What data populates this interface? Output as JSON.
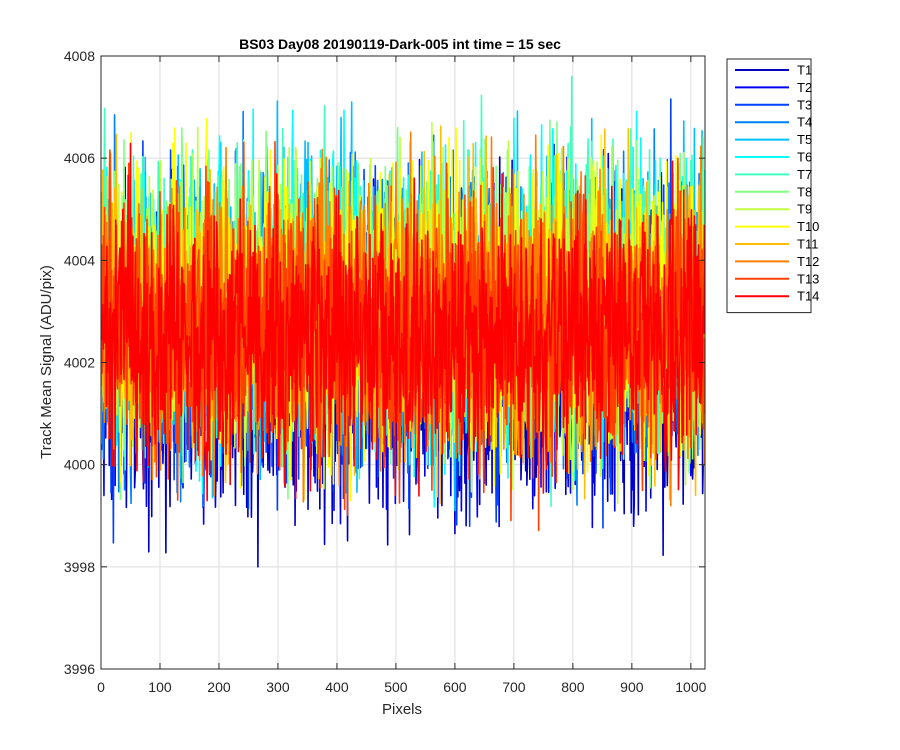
{
  "chart_data": {
    "type": "line",
    "title": "BS03 Day08 20190119-Dark-005 int time = 15 sec",
    "xlabel": "Pixels",
    "ylabel": "Track Mean Signal (ADU/pix)",
    "xlim": [
      0,
      1024
    ],
    "ylim": [
      3996,
      4008
    ],
    "xticks": [
      "0",
      "100",
      "200",
      "300",
      "400",
      "500",
      "600",
      "700",
      "800",
      "900",
      "1000"
    ],
    "yticks": [
      "3996",
      "3998",
      "4000",
      "4002",
      "4004",
      "4006",
      "4008"
    ],
    "grid": true,
    "legend_position": "outside-right",
    "points_per_series": 1024,
    "series": [
      {
        "name": "T1",
        "color": "#0000BF",
        "mean": 4002.0,
        "spread": 1.45
      },
      {
        "name": "T2",
        "color": "#0000F5",
        "mean": 4002.3,
        "spread": 1.4
      },
      {
        "name": "T3",
        "color": "#0040FF",
        "mean": 4002.6,
        "spread": 1.4
      },
      {
        "name": "T4",
        "color": "#0080FF",
        "mean": 4002.9,
        "spread": 1.4
      },
      {
        "name": "T5",
        "color": "#00BFFF",
        "mean": 4003.1,
        "spread": 1.4
      },
      {
        "name": "T6",
        "color": "#00FFFF",
        "mean": 4003.2,
        "spread": 1.4
      },
      {
        "name": "T7",
        "color": "#40FFBF",
        "mean": 4003.2,
        "spread": 1.4
      },
      {
        "name": "T8",
        "color": "#80FF80",
        "mean": 4003.2,
        "spread": 1.4
      },
      {
        "name": "T9",
        "color": "#BFFF40",
        "mean": 4003.1,
        "spread": 1.35
      },
      {
        "name": "T10",
        "color": "#FFFF00",
        "mean": 4003.0,
        "spread": 1.35
      },
      {
        "name": "T11",
        "color": "#FFBF00",
        "mean": 4002.9,
        "spread": 1.3
      },
      {
        "name": "T12",
        "color": "#FF8000",
        "mean": 4002.8,
        "spread": 1.3
      },
      {
        "name": "T13",
        "color": "#FF4000",
        "mean": 4002.7,
        "spread": 1.3
      },
      {
        "name": "T14",
        "color": "#FF0000",
        "mean": 4002.5,
        "spread": 1.3
      }
    ]
  }
}
